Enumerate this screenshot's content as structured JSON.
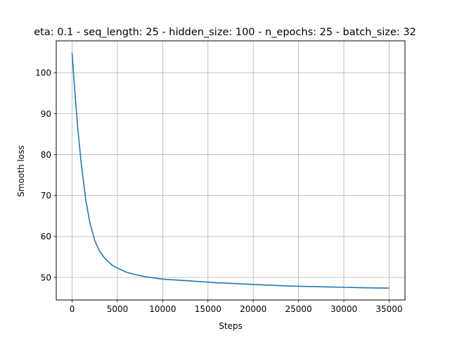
{
  "chart_data": {
    "type": "line",
    "title": "eta: 0.1 - seq_length: 25 - hidden_size: 100 - n_epochs: 25 - batch_size: 32",
    "xlabel": "Steps",
    "ylabel": "Smooth loss",
    "xlim": [
      -1750,
      36750
    ],
    "ylim": [
      44.5,
      107.8
    ],
    "xticks": [
      0,
      5000,
      10000,
      15000,
      20000,
      25000,
      30000,
      35000
    ],
    "yticks": [
      50,
      60,
      70,
      80,
      90,
      100
    ],
    "grid": true,
    "line_color": "#1f77b4",
    "series": [
      {
        "x": [
          0,
          300,
          600,
          1000,
          1500,
          2000,
          2500,
          3000,
          3500,
          4000,
          4500,
          5000,
          6000,
          7000,
          8000,
          9000,
          10000,
          12000,
          14000,
          16000,
          18000,
          20000,
          22000,
          24000,
          26000,
          28000,
          30000,
          32000,
          34000,
          35000
        ],
        "y": [
          104.9,
          95.5,
          87.0,
          78.0,
          69.0,
          63.0,
          59.0,
          56.5,
          55.0,
          53.8,
          52.9,
          52.3,
          51.3,
          50.7,
          50.2,
          49.9,
          49.6,
          49.3,
          49.0,
          48.7,
          48.5,
          48.3,
          48.1,
          47.9,
          47.8,
          47.7,
          47.6,
          47.5,
          47.4,
          47.4
        ]
      }
    ]
  }
}
